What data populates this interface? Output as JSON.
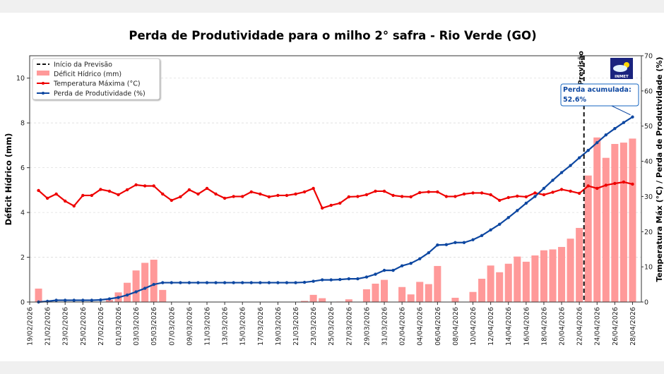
{
  "chart_data": {
    "type": "bar+line",
    "title": "Perda de Produtividade para o milho 2° safra - Rio Verde (GO)",
    "ylabel_left": "Déficit Hídrico (mm)",
    "ylabel_right": "Temperatura Máx (°C) / Perda de Produtividade (%)",
    "ylim_left": [
      0,
      11
    ],
    "ylim_right": [
      0,
      70
    ],
    "yticks_left": [
      "0",
      "2",
      "4",
      "6",
      "8",
      "10"
    ],
    "yticks_right": [
      "0",
      "10",
      "20",
      "30",
      "40",
      "50",
      "60",
      "70"
    ],
    "x_range": [
      "19/02/2026",
      "29/04/2026"
    ],
    "grid": "horizontal dashed",
    "legend_position": "top-left",
    "xtick_labels": [
      "19/02/2026",
      "21/02/2026",
      "23/02/2026",
      "25/02/2026",
      "27/02/2026",
      "01/03/2026",
      "03/03/2026",
      "05/03/2026",
      "07/03/2026",
      "09/03/2026",
      "11/03/2026",
      "13/03/2026",
      "15/03/2026",
      "17/03/2026",
      "19/03/2026",
      "21/03/2026",
      "23/03/2026",
      "25/03/2026",
      "27/03/2026",
      "29/03/2026",
      "31/03/2026",
      "02/04/2026",
      "04/04/2026",
      "06/04/2026",
      "08/04/2026",
      "10/04/2026",
      "12/04/2026",
      "14/04/2026",
      "16/04/2026",
      "18/04/2026",
      "20/04/2026",
      "22/04/2026",
      "24/04/2026",
      "26/04/2026",
      "28/04/2026"
    ],
    "dates": [
      "20/02/2026",
      "21/02/2026",
      "22/02/2026",
      "23/02/2026",
      "24/02/2026",
      "25/02/2026",
      "26/02/2026",
      "27/02/2026",
      "28/02/2026",
      "01/03/2026",
      "02/03/2026",
      "03/03/2026",
      "04/03/2026",
      "05/03/2026",
      "06/03/2026",
      "07/03/2026",
      "08/03/2026",
      "09/03/2026",
      "10/03/2026",
      "11/03/2026",
      "12/03/2026",
      "13/03/2026",
      "14/03/2026",
      "15/03/2026",
      "16/03/2026",
      "17/03/2026",
      "18/03/2026",
      "19/03/2026",
      "20/03/2026",
      "21/03/2026",
      "22/03/2026",
      "23/03/2026",
      "24/03/2026",
      "25/03/2026",
      "26/03/2026",
      "27/03/2026",
      "28/03/2026",
      "29/03/2026",
      "30/03/2026",
      "31/03/2026",
      "01/04/2026",
      "02/04/2026",
      "03/04/2026",
      "04/04/2026",
      "05/04/2026",
      "06/04/2026",
      "07/04/2026",
      "08/04/2026",
      "09/04/2026",
      "10/04/2026",
      "11/04/2026",
      "12/04/2026",
      "13/04/2026",
      "14/04/2026",
      "15/04/2026",
      "16/04/2026",
      "17/04/2026",
      "18/04/2026",
      "19/04/2026",
      "20/04/2026",
      "21/04/2026",
      "22/04/2026",
      "23/04/2026",
      "24/04/2026",
      "25/04/2026",
      "26/04/2026",
      "27/04/2026",
      "28/04/2026"
    ],
    "series": [
      {
        "name": "Déficit Hídrico (mm)",
        "type": "bar",
        "axis": "left",
        "color": "#ff9999",
        "values": [
          0.6,
          0,
          0,
          0,
          0,
          0,
          0,
          0,
          0.1,
          0.43,
          0.86,
          1.41,
          1.75,
          1.89,
          0.54,
          0,
          0,
          0,
          0,
          0,
          0,
          0,
          0,
          0,
          0,
          0,
          0,
          0,
          0,
          0,
          0.05,
          0.32,
          0.17,
          0,
          0.02,
          0.12,
          0,
          0.57,
          0.82,
          0.99,
          0,
          0.67,
          0.34,
          0.9,
          0.8,
          1.61,
          0,
          0.19,
          0,
          0.45,
          1.04,
          1.63,
          1.33,
          1.71,
          2.03,
          1.8,
          2.08,
          2.31,
          2.35,
          2.46,
          2.83,
          3.31,
          5.65,
          7.35,
          6.44,
          7.06,
          7.12,
          7.3
        ]
      },
      {
        "name": "Temperatura Máxima (°C)",
        "type": "line",
        "axis": "right",
        "color": "#ee0000",
        "values": [
          31.7,
          29.5,
          30.7,
          28.7,
          27.3,
          30.3,
          30.3,
          32.0,
          31.5,
          30.5,
          31.9,
          33.3,
          33.0,
          33.0,
          30.7,
          28.9,
          29.9,
          31.9,
          30.7,
          32.3,
          30.7,
          29.5,
          30.0,
          30.0,
          31.3,
          30.7,
          29.9,
          30.3,
          30.3,
          30.7,
          31.3,
          32.3,
          26.7,
          27.5,
          28.1,
          29.9,
          30.0,
          30.5,
          31.5,
          31.5,
          30.3,
          30.0,
          29.9,
          31.1,
          31.3,
          31.3,
          30.0,
          30.0,
          30.7,
          31.0,
          31.0,
          30.5,
          28.9,
          29.7,
          30.1,
          29.9,
          31.0,
          30.5,
          31.2,
          32.0,
          31.5,
          30.9,
          33.0,
          32.3,
          33.2,
          33.7,
          34.1,
          33.5
        ]
      },
      {
        "name": "Perda de Produtividade (%)",
        "type": "line",
        "axis": "right",
        "color": "#0d47a1",
        "values": [
          0,
          0.2,
          0.5,
          0.5,
          0.5,
          0.5,
          0.5,
          0.6,
          0.9,
          1.3,
          2.0,
          2.9,
          3.9,
          5.0,
          5.5,
          5.5,
          5.5,
          5.5,
          5.5,
          5.5,
          5.5,
          5.5,
          5.5,
          5.5,
          5.5,
          5.5,
          5.5,
          5.5,
          5.5,
          5.5,
          5.6,
          5.9,
          6.3,
          6.3,
          6.4,
          6.6,
          6.6,
          7.1,
          7.9,
          9.0,
          9.0,
          10.3,
          11.0,
          12.3,
          14.0,
          16.2,
          16.3,
          16.9,
          16.9,
          17.7,
          18.9,
          20.5,
          22.1,
          24.0,
          26.0,
          28.1,
          30.0,
          32.3,
          34.6,
          36.8,
          38.8,
          41.0,
          43.1,
          45.3,
          47.5,
          49.3,
          51.0,
          52.6
        ]
      }
    ],
    "forecast_start": "23/04/2026",
    "forecast_marker_label": "Previsão",
    "legend": [
      "Início da Previsão",
      "Déficit Hídrico (mm)",
      "Temperatura Máxima (°C)",
      "Perda de Produtividade (%)"
    ],
    "annotation": {
      "line1": "Perda acumulada:",
      "line2": "52.6%"
    },
    "logo_text": "INMET"
  }
}
